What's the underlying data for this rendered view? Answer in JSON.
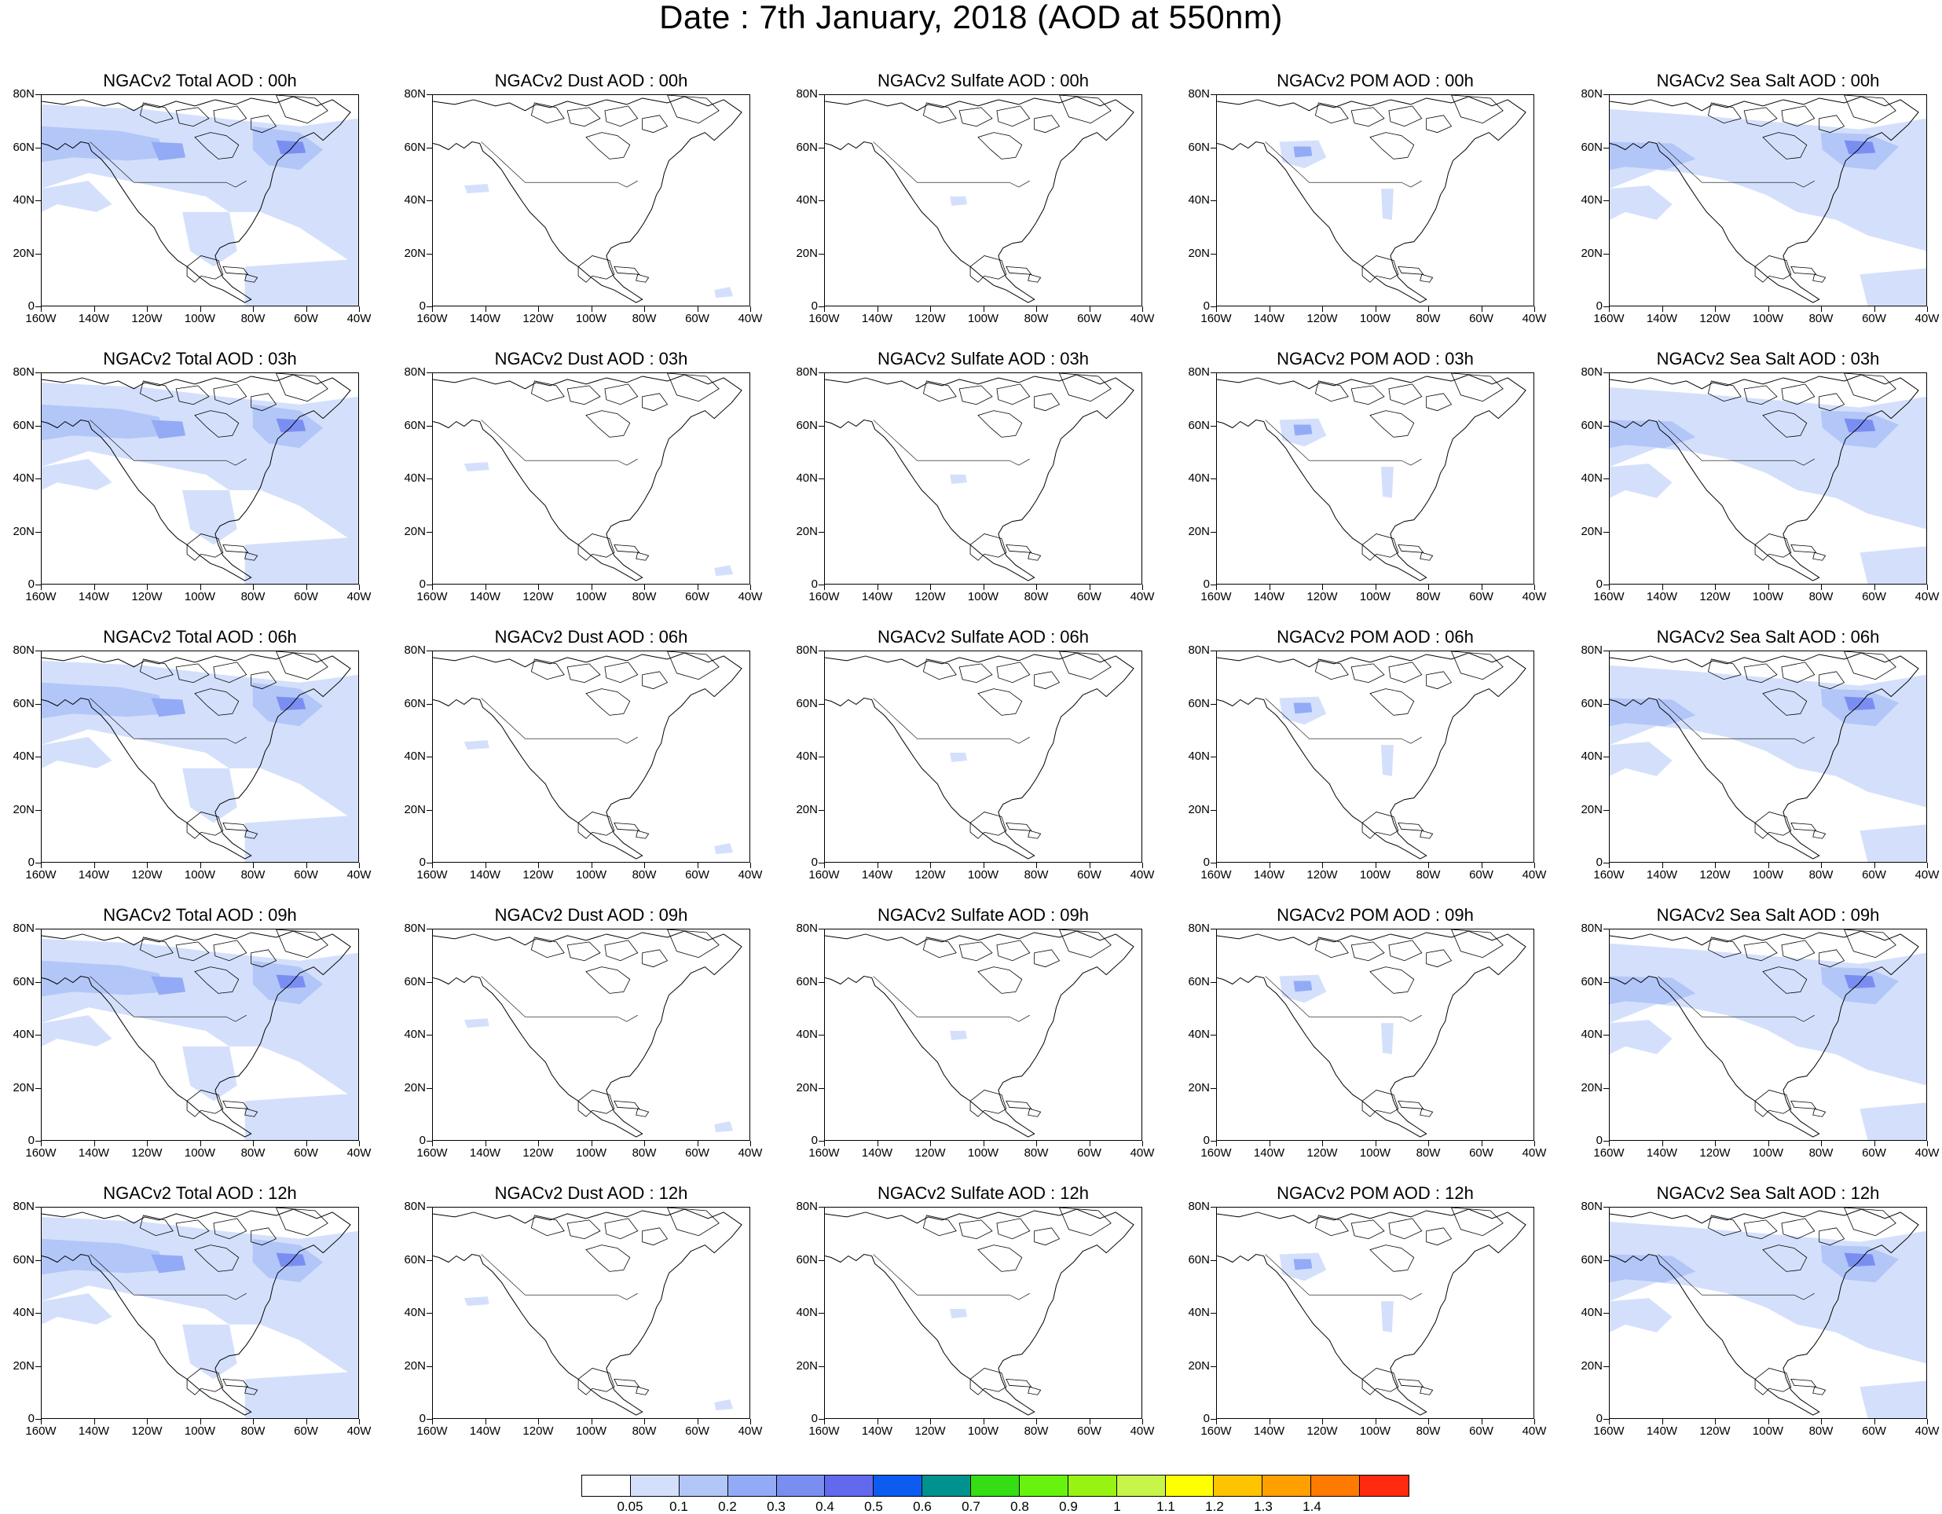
{
  "title": "Date : 7th January, 2018 (AOD at 550nm)",
  "axes": {
    "y_ticks": [
      "80N",
      "60N",
      "40N",
      "20N",
      "0"
    ],
    "x_ticks": [
      "160W",
      "140W",
      "120W",
      "100W",
      "80W",
      "60W",
      "40W"
    ]
  },
  "panels": [
    {
      "title": "NGACv2 Total AOD : 00h",
      "field": "total"
    },
    {
      "title": "NGACv2 Dust AOD : 00h",
      "field": "dust"
    },
    {
      "title": "NGACv2 Sulfate AOD : 00h",
      "field": "sulfate"
    },
    {
      "title": "NGACv2 POM AOD : 00h",
      "field": "pom"
    },
    {
      "title": "NGACv2 Sea Salt AOD : 00h",
      "field": "seasalt"
    },
    {
      "title": "NGACv2 Total AOD : 03h",
      "field": "total"
    },
    {
      "title": "NGACv2 Dust AOD : 03h",
      "field": "dust"
    },
    {
      "title": "NGACv2 Sulfate AOD : 03h",
      "field": "sulfate"
    },
    {
      "title": "NGACv2 POM AOD : 03h",
      "field": "pom"
    },
    {
      "title": "NGACv2 Sea Salt AOD : 03h",
      "field": "seasalt"
    },
    {
      "title": "NGACv2 Total AOD : 06h",
      "field": "total"
    },
    {
      "title": "NGACv2 Dust AOD : 06h",
      "field": "dust"
    },
    {
      "title": "NGACv2 Sulfate AOD : 06h",
      "field": "sulfate"
    },
    {
      "title": "NGACv2 POM AOD : 06h",
      "field": "pom"
    },
    {
      "title": "NGACv2 Sea Salt AOD : 06h",
      "field": "seasalt"
    },
    {
      "title": "NGACv2 Total AOD : 09h",
      "field": "total"
    },
    {
      "title": "NGACv2 Dust AOD : 09h",
      "field": "dust"
    },
    {
      "title": "NGACv2 Sulfate AOD : 09h",
      "field": "sulfate"
    },
    {
      "title": "NGACv2 POM AOD : 09h",
      "field": "pom"
    },
    {
      "title": "NGACv2 Sea Salt  AOD : 09h",
      "field": "seasalt"
    },
    {
      "title": "NGACv2 Total AOD  : 12h",
      "field": "total"
    },
    {
      "title": "NGACv2 Dust AOD : 12h",
      "field": "dust"
    },
    {
      "title": "NGACv2 Sulfate AOD : 12h",
      "field": "sulfate"
    },
    {
      "title": "NGACv2 POM  AOD : 12h",
      "field": "pom"
    },
    {
      "title": "NGACv2 Sea Salt  AOD : 12h",
      "field": "seasalt"
    }
  ],
  "colorbar": {
    "labels": [
      "0.05",
      "0.1",
      "0.2",
      "0.3",
      "0.4",
      "0.5",
      "0.6",
      "0.7",
      "0.8",
      "0.9",
      "1",
      "1.1",
      "1.2",
      "1.3",
      "1.4"
    ],
    "colors": [
      "#ffffff",
      "#d4e0fb",
      "#b3c6f8",
      "#93abf6",
      "#7a8ef2",
      "#6269ee",
      "#0d5cf2",
      "#00928f",
      "#35dd14",
      "#67f30e",
      "#98f212",
      "#c7f54a",
      "#ffff00",
      "#ffc300",
      "#ffa000",
      "#ff7a00",
      "#ff2a10"
    ]
  }
}
